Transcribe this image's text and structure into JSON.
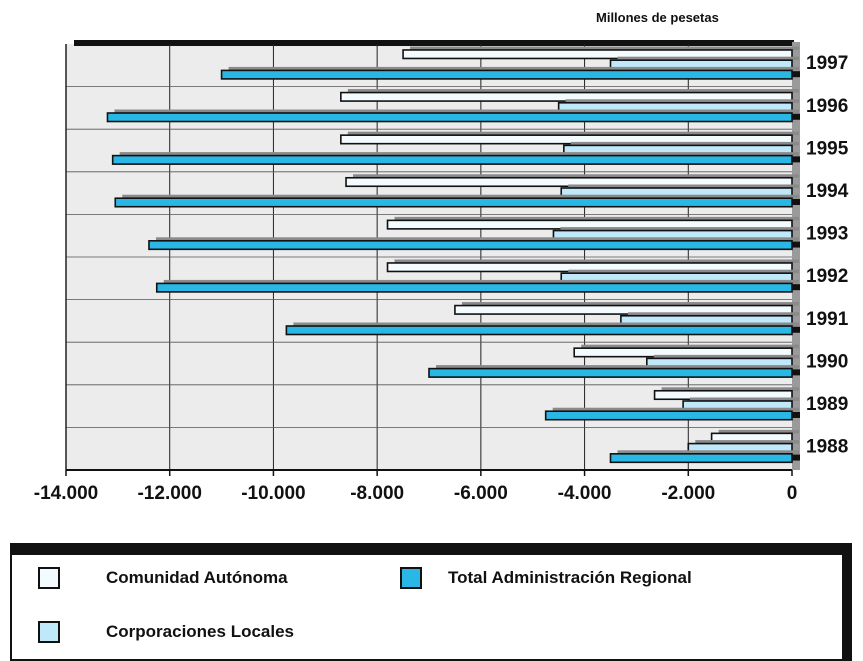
{
  "chart_data": {
    "type": "bar",
    "orientation": "horizontal",
    "unit_label": "Millones de pesetas",
    "categories": [
      "1997",
      "1996",
      "1995",
      "1994",
      "1993",
      "1992",
      "1991",
      "1990",
      "1989",
      "1988"
    ],
    "series": [
      {
        "name": "Comunidad Autónoma",
        "color": "#f4fbff",
        "values": [
          -7500,
          -8700,
          -8700,
          -8600,
          -7800,
          -7800,
          -6500,
          -4200,
          -2650,
          -1550
        ]
      },
      {
        "name": "Corporaciones Locales",
        "color": "#bfe9fb",
        "values": [
          -3500,
          -4500,
          -4400,
          -4450,
          -4600,
          -4450,
          -3300,
          -2800,
          -2100,
          -2000
        ]
      },
      {
        "name": "Total Administración Regional",
        "color": "#29b8e6",
        "values": [
          -11000,
          -13200,
          -13100,
          -13050,
          -12400,
          -12250,
          -9750,
          -7000,
          -4750,
          -3500
        ]
      }
    ],
    "shadow_color": "#8a8a8a",
    "xlim": [
      -14000,
      0
    ],
    "xticks": [
      -14000,
      -12000,
      -10000,
      -8000,
      -6000,
      -4000,
      -2000,
      0
    ],
    "xtick_labels": [
      "-14.000",
      "-12.000",
      "-10.000",
      "-8.000",
      "-6.000",
      "-4.000",
      "-2.000",
      "0"
    ],
    "legend_placement": "bottom",
    "grid": true
  },
  "legend": {
    "items": [
      {
        "label": "Comunidad Autónoma",
        "color": "#f4fbff"
      },
      {
        "label": "Total Administración Regional",
        "color": "#29b8e6"
      },
      {
        "label": "Corporaciones Locales",
        "color": "#bfe9fb"
      }
    ]
  }
}
